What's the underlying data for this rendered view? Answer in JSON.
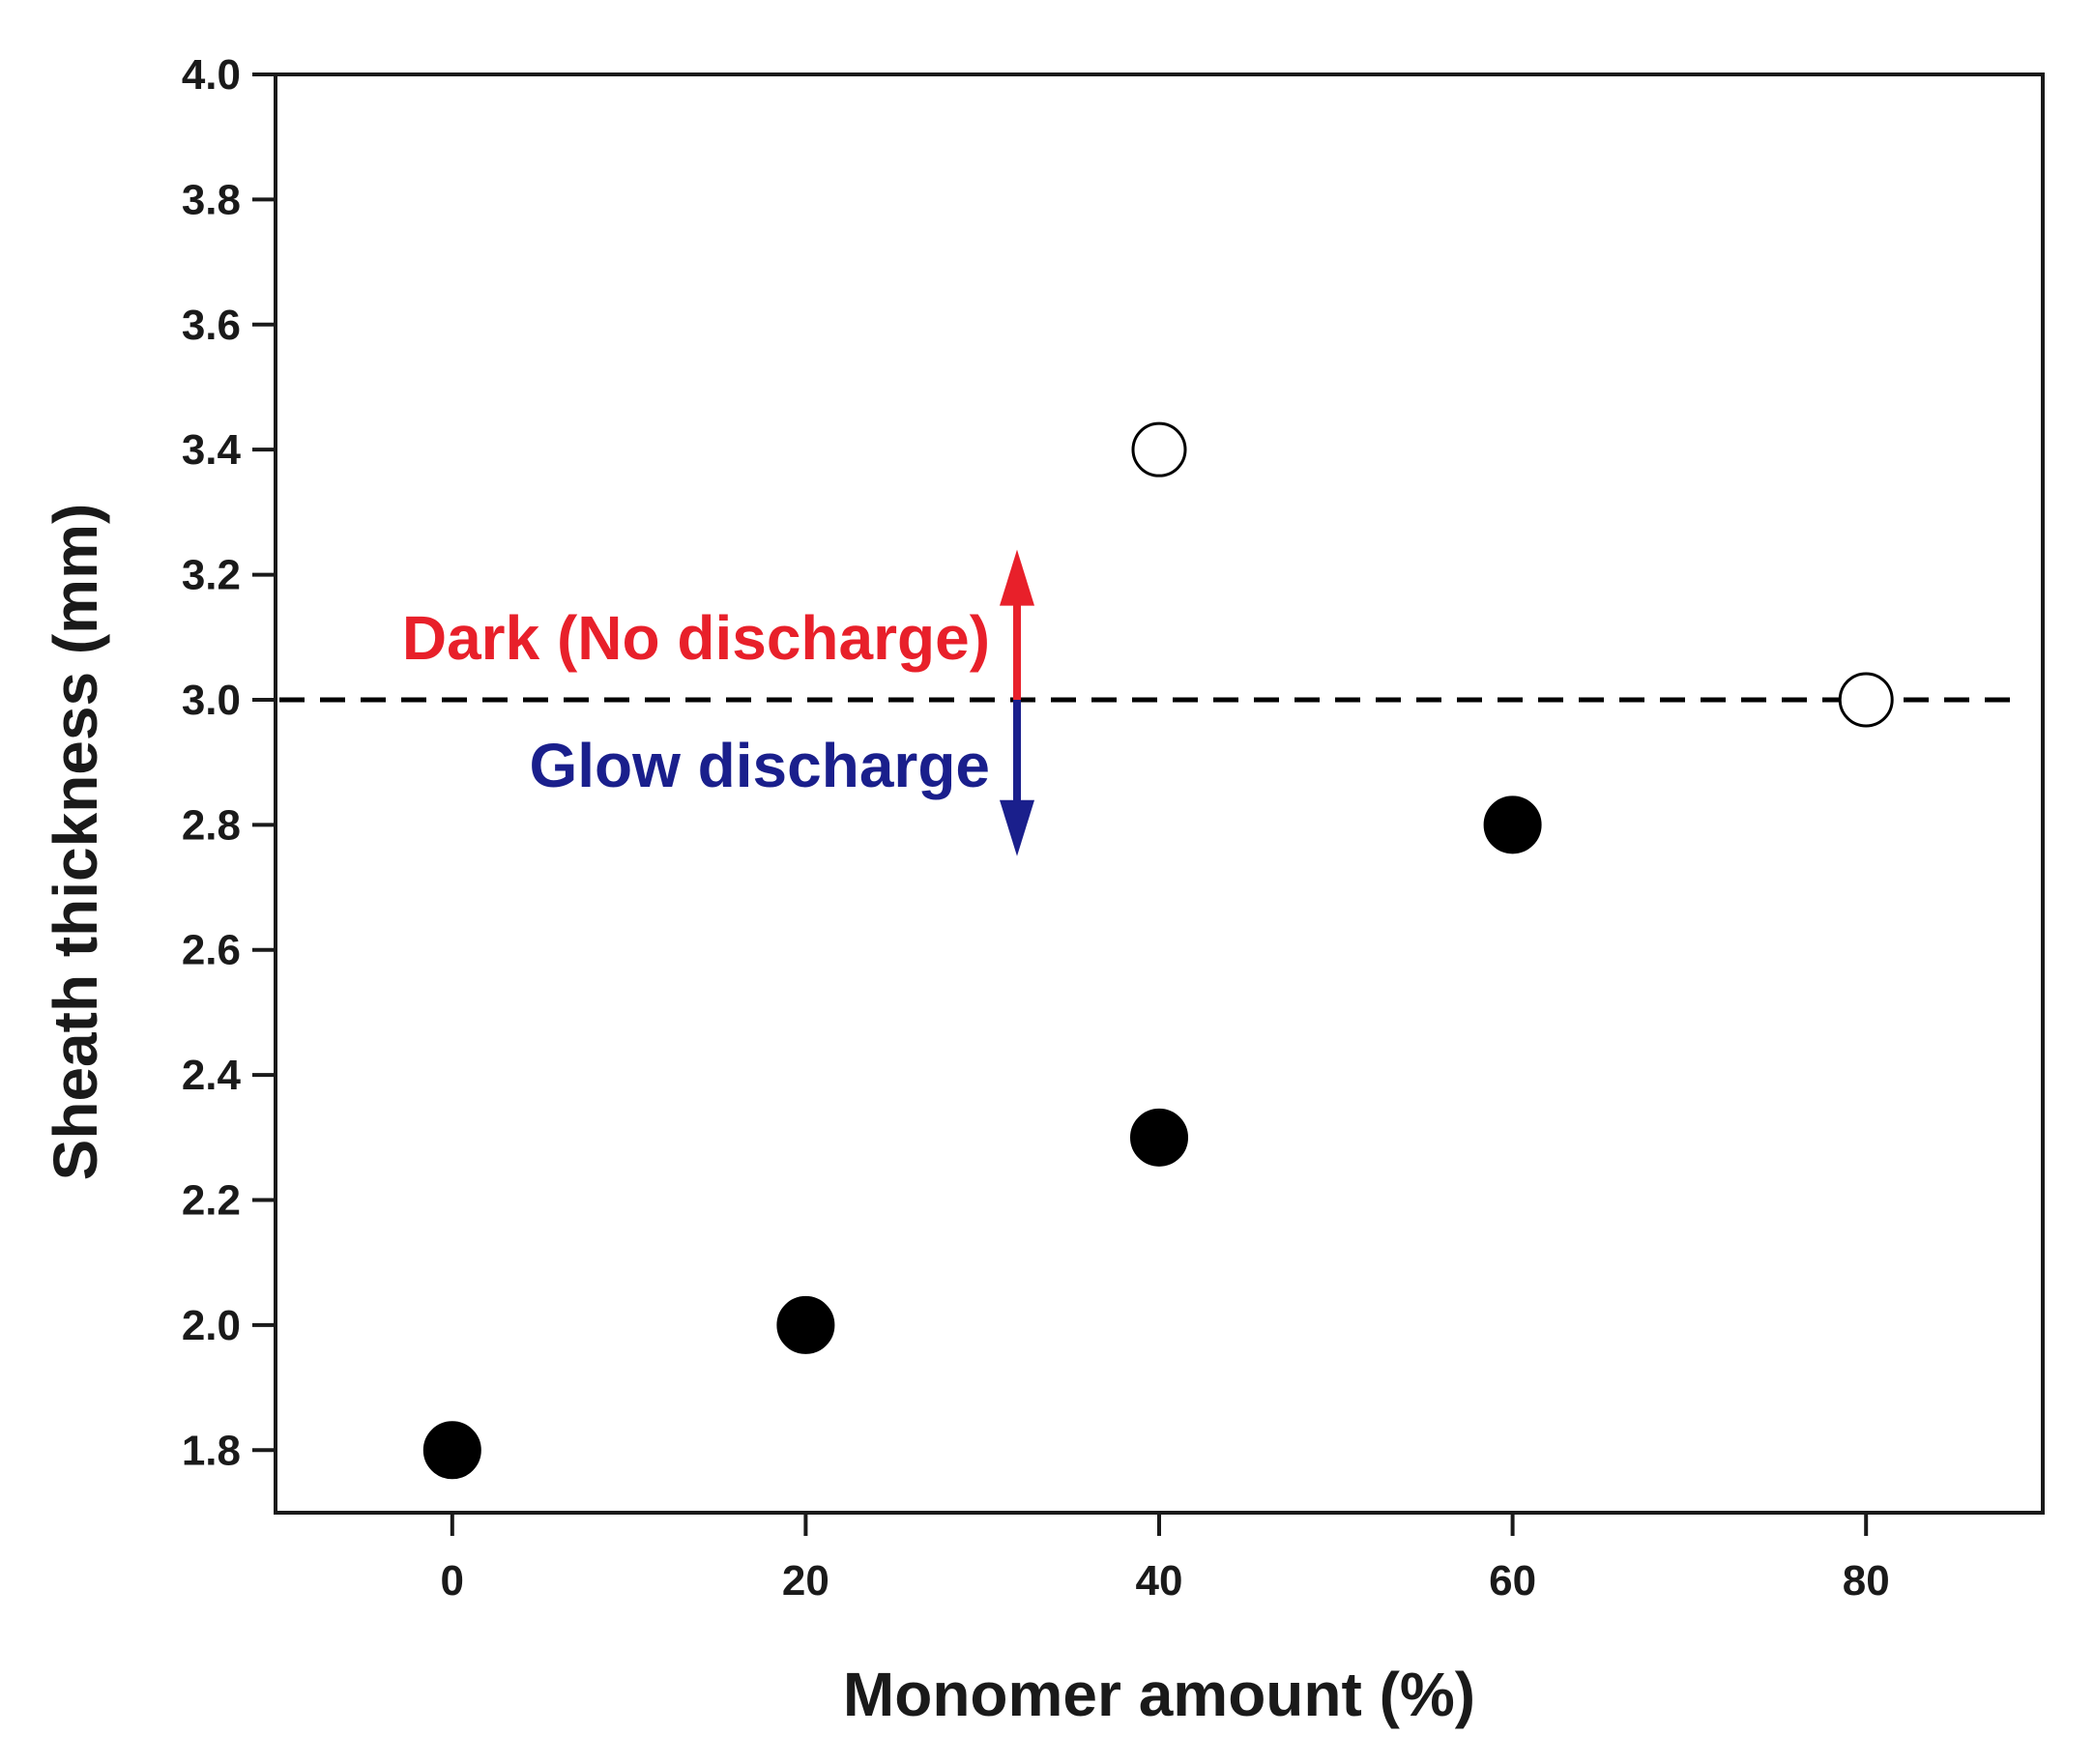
{
  "chart_data": {
    "type": "scatter",
    "xlabel": "Monomer amount (%)",
    "ylabel": "Sheath thickness (mm)",
    "xlim": [
      -10,
      90
    ],
    "ylim": [
      1.7,
      4.0
    ],
    "x_ticks": [
      "0",
      "20",
      "40",
      "60",
      "80"
    ],
    "y_ticks": [
      "1.8",
      "2.0",
      "2.2",
      "2.4",
      "2.6",
      "2.8",
      "3.0",
      "3.2",
      "3.4",
      "3.6",
      "3.8",
      "4.0"
    ],
    "grid": false,
    "series": [
      {
        "marker": "filled-circle",
        "color": "#000000",
        "points": [
          {
            "x": 0,
            "y": 1.8
          },
          {
            "x": 20,
            "y": 2.0
          },
          {
            "x": 40,
            "y": 2.3
          },
          {
            "x": 60,
            "y": 2.8
          }
        ]
      },
      {
        "marker": "open-circle",
        "color": "#000000",
        "points": [
          {
            "x": 40,
            "y": 3.4
          },
          {
            "x": 80,
            "y": 3.0
          }
        ]
      }
    ],
    "reference_line": {
      "y": 3.0,
      "style": "dashed",
      "color": "#000000"
    },
    "annotations": {
      "dark": {
        "text": "Dark (No discharge)",
        "color": "#e8202a",
        "arrow": "up"
      },
      "glow": {
        "text": "Glow discharge",
        "color": "#1a1f8c",
        "arrow": "down"
      }
    }
  }
}
